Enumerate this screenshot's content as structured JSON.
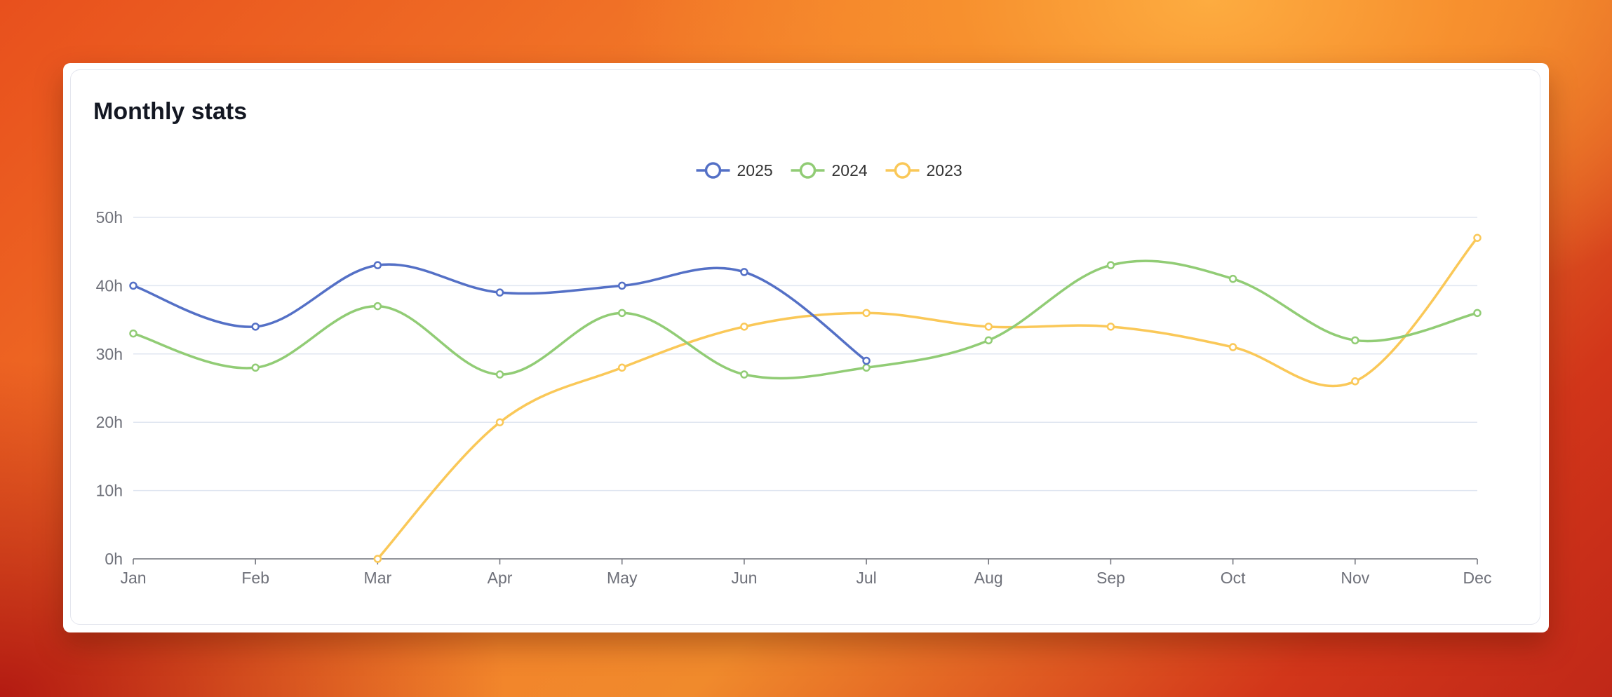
{
  "card": {
    "title": "Monthly stats"
  },
  "colors": {
    "series_2025": "#5470c6",
    "series_2024": "#91cc75",
    "series_2023": "#fac858",
    "grid": "#e0e6f1",
    "axis": "#6e7079"
  },
  "chart_data": {
    "type": "line",
    "smooth": true,
    "title": "Monthly stats",
    "xlabel": "",
    "ylabel": "",
    "categories": [
      "Jan",
      "Feb",
      "Mar",
      "Apr",
      "May",
      "Jun",
      "Jul",
      "Aug",
      "Sep",
      "Oct",
      "Nov",
      "Dec"
    ],
    "y_ticks": [
      "0h",
      "10h",
      "20h",
      "30h",
      "40h",
      "50h"
    ],
    "ylim": [
      0,
      50
    ],
    "grid": true,
    "legend_position": "top-center",
    "series": [
      {
        "name": "2025",
        "color": "#5470c6",
        "values": [
          40,
          34,
          43,
          39,
          40,
          42,
          29,
          null,
          null,
          null,
          null,
          null
        ]
      },
      {
        "name": "2024",
        "color": "#91cc75",
        "values": [
          33,
          28,
          37,
          27,
          36,
          27,
          28,
          32,
          43,
          41,
          32,
          36
        ]
      },
      {
        "name": "2023",
        "color": "#fac858",
        "values": [
          null,
          null,
          0,
          20,
          28,
          34,
          36,
          34,
          34,
          31,
          26,
          47
        ]
      }
    ]
  }
}
